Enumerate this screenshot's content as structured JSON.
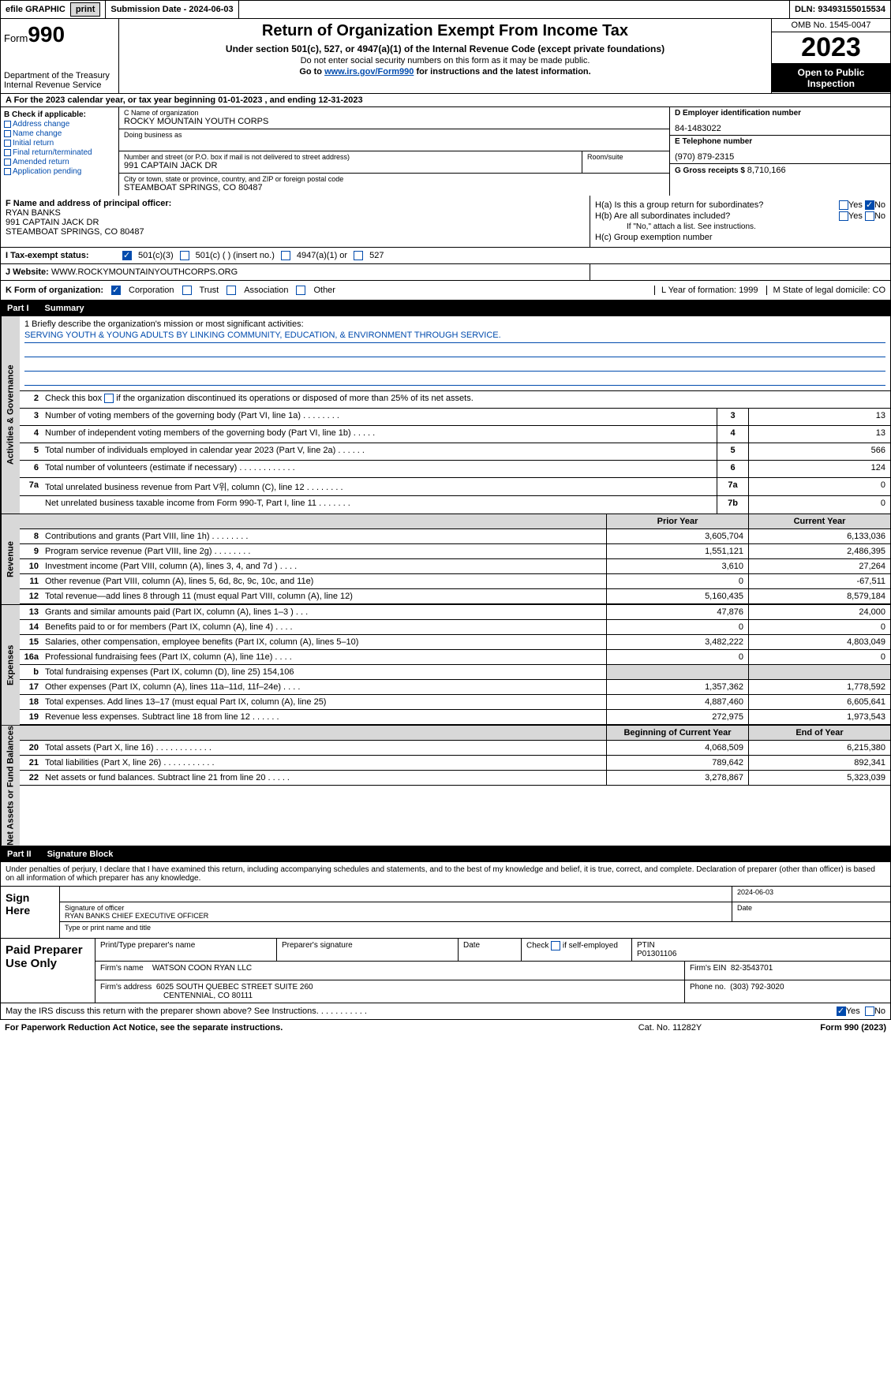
{
  "topbar": {
    "efile": "efile GRAPHIC",
    "print": "print",
    "submission_label": "Submission Date - 2024-06-03",
    "dln_label": "DLN: 93493155015534"
  },
  "header": {
    "form_prefix": "Form",
    "form_num": "990",
    "dept": "Department of the Treasury",
    "irs": "Internal Revenue Service",
    "title": "Return of Organization Exempt From Income Tax",
    "sub1": "Under section 501(c), 527, or 4947(a)(1) of the Internal Revenue Code (except private foundations)",
    "sub2": "Do not enter social security numbers on this form as it may be made public.",
    "sub3_pre": "Go to ",
    "sub3_link": "www.irs.gov/Form990",
    "sub3_post": " for instructions and the latest information.",
    "omb": "OMB No. 1545-0047",
    "year": "2023",
    "open_public": "Open to Public Inspection"
  },
  "row_a": "A For the 2023 calendar year, or tax year beginning 01-01-2023    , and ending 12-31-2023",
  "box_b": {
    "label": "B Check if applicable:",
    "items": [
      "Address change",
      "Name change",
      "Initial return",
      "Final return/terminated",
      "Amended return",
      "Application pending"
    ]
  },
  "box_c": {
    "name_label": "C Name of organization",
    "name": "ROCKY MOUNTAIN YOUTH CORPS",
    "dba_label": "Doing business as",
    "dba": "",
    "addr_label": "Number and street (or P.O. box if mail is not delivered to street address)",
    "addr": "991 CAPTAIN JACK DR",
    "room_label": "Room/suite",
    "city_label": "City or town, state or province, country, and ZIP or foreign postal code",
    "city": "STEAMBOAT SPRINGS, CO  80487"
  },
  "box_d": {
    "ein_label": "D Employer identification number",
    "ein": "84-1483022",
    "phone_label": "E Telephone number",
    "phone": "(970) 879-2315",
    "gross_label": "G Gross receipts $",
    "gross": "8,710,166"
  },
  "box_f": {
    "label": "F  Name and address of principal officer:",
    "name": "RYAN BANKS",
    "addr1": "991 CAPTAIN JACK DR",
    "addr2": "STEAMBOAT SPRINGS, CO  80487"
  },
  "box_h": {
    "ha_label": "H(a)  Is this a group return for subordinates?",
    "hb_label": "H(b)  Are all subordinates included?",
    "hb_note": "If \"No,\" attach a list. See instructions.",
    "hc_label": "H(c)  Group exemption number",
    "yes": "Yes",
    "no": "No"
  },
  "row_i": {
    "label": "I    Tax-exempt status:",
    "opts": [
      "501(c)(3)",
      "501(c) (  ) (insert no.)",
      "4947(a)(1) or",
      "527"
    ]
  },
  "row_j": {
    "label": "J    Website:",
    "val": "WWW.ROCKYMOUNTAINYOUTHCORPS.ORG"
  },
  "row_k": {
    "label": "K Form of organization:",
    "opts": [
      "Corporation",
      "Trust",
      "Association",
      "Other"
    ],
    "l_label": "L Year of formation:",
    "l_val": "1999",
    "m_label": "M State of legal domicile:",
    "m_val": "CO"
  },
  "part1": {
    "hdr_num": "Part I",
    "hdr_title": "Summary",
    "tabs": [
      "Activities & Governance",
      "Revenue",
      "Expenses",
      "Net Assets or Fund Balances"
    ],
    "q1_label": "1  Briefly describe the organization's mission or most significant activities:",
    "q1_val": "SERVING YOUTH & YOUNG ADULTS BY LINKING COMMUNITY, EDUCATION, & ENVIRONMENT THROUGH SERVICE.",
    "q2": "Check this box     if the organization discontinued its operations or disposed of more than 25% of its net assets.",
    "rows_single": [
      {
        "n": "3",
        "t": "Number of voting members of the governing body (Part VI, line 1a)   .    .    .    .    .    .    .    .",
        "l": "3",
        "v": "13"
      },
      {
        "n": "4",
        "t": "Number of independent voting members of the governing body (Part VI, line 1b)  .    .    .    .    .",
        "l": "4",
        "v": "13"
      },
      {
        "n": "5",
        "t": "Total number of individuals employed in calendar year 2023 (Part V, line 2a)  .    .    .    .    .    .",
        "l": "5",
        "v": "566"
      },
      {
        "n": "6",
        "t": "Total number of volunteers (estimate if necessary)   .    .    .    .    .    .    .    .    .    .    .    .",
        "l": "6",
        "v": "124"
      },
      {
        "n": "7a",
        "t": "Total unrelated business revenue from Part V위, column (C), line 12   .    .    .    .    .    .    .    .",
        "l": "7a",
        "v": "0"
      },
      {
        "n": "",
        "t": "Net unrelated business taxable income from Form 990-T, Part I, line 11  .    .    .    .    .    .    .",
        "l": "7b",
        "v": "0"
      }
    ],
    "col_hdr_prior": "Prior Year",
    "col_hdr_current": "Current Year",
    "rev_rows": [
      {
        "n": "8",
        "t": "Contributions and grants (Part VIII, line 1h)   .    .    .    .    .    .    .    .",
        "py": "3,605,704",
        "cy": "6,133,036"
      },
      {
        "n": "9",
        "t": "Program service revenue (Part VIII, line 2g)   .    .    .    .    .    .    .    .",
        "py": "1,551,121",
        "cy": "2,486,395"
      },
      {
        "n": "10",
        "t": "Investment income (Part VIII, column (A), lines 3, 4, and 7d )   .    .    .    .",
        "py": "3,610",
        "cy": "27,264"
      },
      {
        "n": "11",
        "t": "Other revenue (Part VIII, column (A), lines 5, 6d, 8c, 9c, 10c, and 11e)",
        "py": "0",
        "cy": "-67,511"
      },
      {
        "n": "12",
        "t": "Total revenue—add lines 8 through 11 (must equal Part VIII, column (A), line 12)",
        "py": "5,160,435",
        "cy": "8,579,184"
      }
    ],
    "exp_rows": [
      {
        "n": "13",
        "t": "Grants and similar amounts paid (Part IX, column (A), lines 1–3 )   .    .    .",
        "py": "47,876",
        "cy": "24,000"
      },
      {
        "n": "14",
        "t": "Benefits paid to or for members (Part IX, column (A), line 4)  .    .    .    .",
        "py": "0",
        "cy": "0"
      },
      {
        "n": "15",
        "t": "Salaries, other compensation, employee benefits (Part IX, column (A), lines 5–10)",
        "py": "3,482,222",
        "cy": "4,803,049"
      },
      {
        "n": "16a",
        "t": "Professional fundraising fees (Part IX, column (A), line 11e)  .    .    .    .",
        "py": "0",
        "cy": "0"
      },
      {
        "n": "b",
        "t": "Total fundraising expenses (Part IX, column (D), line 25) 154,106",
        "py": "shade",
        "cy": "shade"
      },
      {
        "n": "17",
        "t": "Other expenses (Part IX, column (A), lines 11a–11d, 11f–24e)   .    .    .    .",
        "py": "1,357,362",
        "cy": "1,778,592"
      },
      {
        "n": "18",
        "t": "Total expenses. Add lines 13–17 (must equal Part IX, column (A), line 25)",
        "py": "4,887,460",
        "cy": "6,605,641"
      },
      {
        "n": "19",
        "t": "Revenue less expenses. Subtract line 18 from line 12  .    .    .    .    .    .",
        "py": "272,975",
        "cy": "1,973,543"
      }
    ],
    "na_hdr_begin": "Beginning of Current Year",
    "na_hdr_end": "End of Year",
    "na_rows": [
      {
        "n": "20",
        "t": "Total assets (Part X, line 16)  .    .    .    .    .    .    .    .    .    .    .    .",
        "py": "4,068,509",
        "cy": "6,215,380"
      },
      {
        "n": "21",
        "t": "Total liabilities (Part X, line 26)  .    .    .    .    .    .    .    .    .    .    .",
        "py": "789,642",
        "cy": "892,341"
      },
      {
        "n": "22",
        "t": "Net assets or fund balances. Subtract line 21 from line 20  .    .    .    .    .",
        "py": "3,278,867",
        "cy": "5,323,039"
      }
    ]
  },
  "part2": {
    "hdr_num": "Part II",
    "hdr_title": "Signature Block",
    "decl": "Under penalties of perjury, I declare that I have examined this return, including accompanying schedules and statements, and to the best of my knowledge and belief, it is true, correct, and complete. Declaration of preparer (other than officer) is based on all information of which preparer has any knowledge.",
    "sign_here": "Sign Here",
    "sig_date": "2024-06-03",
    "sig_label1": "Signature of officer",
    "sig_name": "RYAN BANKS  CHIEF EXECUTIVE OFFICER",
    "sig_label2": "Type or print name and title",
    "date_label": "Date"
  },
  "prep": {
    "left": "Paid Preparer Use Only",
    "r1_c1": "Print/Type preparer's name",
    "r1_c2": "Preparer's signature",
    "r1_c3": "Date",
    "r1_c4_label": "Check       if self-employed",
    "r1_c5_label": "PTIN",
    "r1_c5_val": "P01301106",
    "r2_label": "Firm's name",
    "r2_val": "WATSON COON RYAN LLC",
    "r2_ein_label": "Firm's EIN",
    "r2_ein_val": "82-3543701",
    "r3_label": "Firm's address",
    "r3_val1": "6025 SOUTH QUEBEC STREET SUITE 260",
    "r3_val2": "CENTENNIAL, CO  80111",
    "r3_phone_label": "Phone no.",
    "r3_phone_val": "(303) 792-3020"
  },
  "discuss": {
    "text": "May the IRS discuss this return with the preparer shown above? See Instructions.   .    .    .    .    .    .    .    .    .    .",
    "yes": "Yes",
    "no": "No"
  },
  "footer": {
    "left": "For Paperwork Reduction Act Notice, see the separate instructions.",
    "mid": "Cat. No. 11282Y",
    "right_pre": "Form ",
    "right_form": "990",
    "right_post": " (2023)"
  }
}
